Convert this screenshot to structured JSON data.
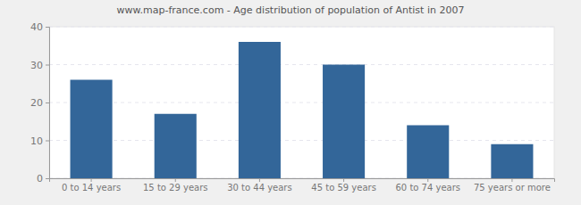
{
  "chart_data": {
    "type": "bar",
    "title": "www.map-france.com - Age distribution of population of Antist in 2007",
    "categories": [
      "0 to 14 years",
      "15 to 29 years",
      "30 to 44 years",
      "45 to 59 years",
      "60 to 74 years",
      "75 years or more"
    ],
    "values": [
      26,
      17,
      36,
      30,
      14,
      9
    ],
    "color": "#336699",
    "ylim": [
      0,
      40
    ],
    "yticks": [
      0,
      10,
      20,
      30,
      40
    ],
    "grid": true
  }
}
